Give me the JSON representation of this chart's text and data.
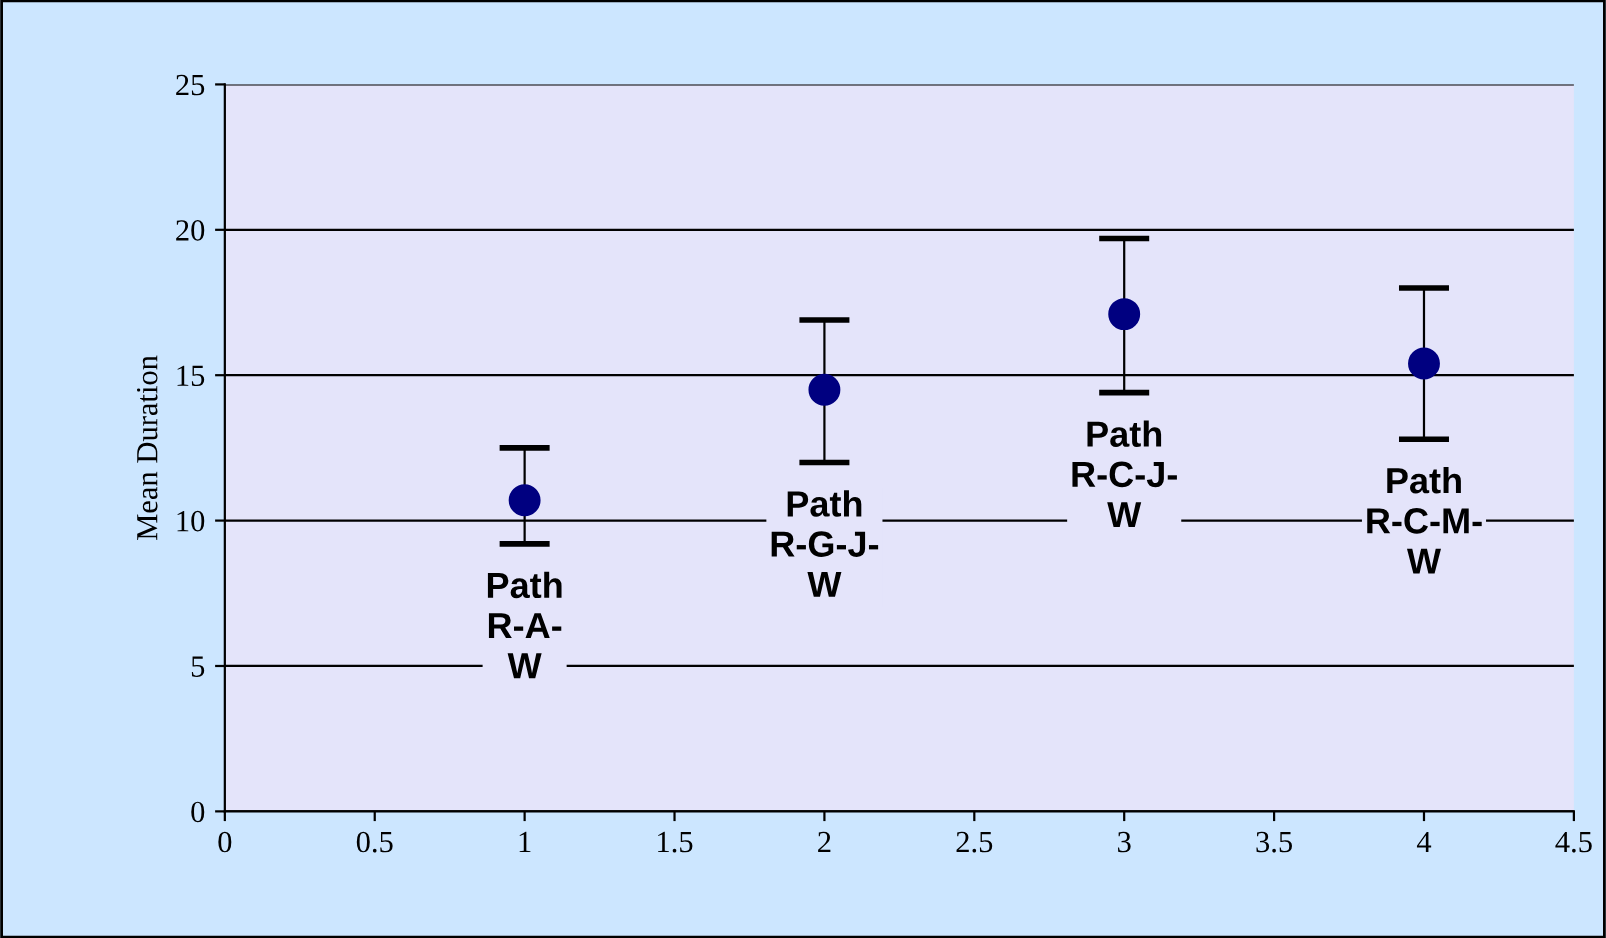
{
  "chart_data": {
    "type": "scatter",
    "ylabel": "Mean Duration",
    "x": [
      1,
      2,
      3,
      4
    ],
    "series": [
      {
        "color": "#000080",
        "values": [
          10.7,
          14.5,
          17.1,
          15.4
        ],
        "errors": [
          [
            9.2,
            12.5
          ],
          [
            12.0,
            16.9
          ],
          [
            14.4,
            19.7
          ],
          [
            12.8,
            18.0
          ]
        ]
      }
    ],
    "marker": "circle",
    "xlim": [
      0,
      4.5
    ],
    "xticks": [
      0,
      0.5,
      1,
      1.5,
      2,
      2.5,
      3,
      3.5,
      4,
      4.5
    ],
    "ylim": [
      0,
      25
    ],
    "yticks": [
      0,
      5,
      10,
      15,
      20,
      25
    ],
    "grid": "y",
    "annotations": [
      "Path\nR-A-\nW",
      "Path\nR-G-J-\nW",
      "Path\nR-C-J-\nW",
      "Path\nR-C-M-\nW"
    ]
  }
}
